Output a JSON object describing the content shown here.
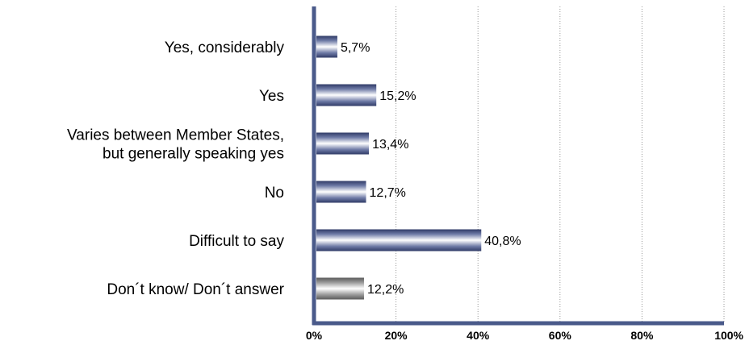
{
  "chart_data": {
    "type": "bar",
    "orientation": "horizontal",
    "title": "",
    "xlabel": "",
    "ylabel": "",
    "categories": [
      [
        "Yes, considerably"
      ],
      [
        "Yes"
      ],
      [
        "Varies between Member States,",
        "but generally speaking yes"
      ],
      [
        "No"
      ],
      [
        "Difficult to say"
      ],
      [
        "Don´t know/ Don´t answer"
      ]
    ],
    "values": [
      5.7,
      15.2,
      13.4,
      12.7,
      40.8,
      12.2
    ],
    "value_labels": [
      "5,7%",
      "15,2%",
      "13,4%",
      "12,7%",
      "40,8%",
      "12,2%"
    ],
    "bar_colors": [
      "#3b4a7a",
      "#3b4a7a",
      "#3b4a7a",
      "#3b4a7a",
      "#3b4a7a",
      "#7a7a7a"
    ],
    "xlim": [
      0,
      100
    ],
    "x_ticks": [
      0,
      20,
      40,
      60,
      80,
      100
    ],
    "x_tick_labels": [
      "0%",
      "20%",
      "40%",
      "60%",
      "80%",
      "100%"
    ],
    "grid": "vertical dotted",
    "axis_color": "#4a5a8a"
  }
}
